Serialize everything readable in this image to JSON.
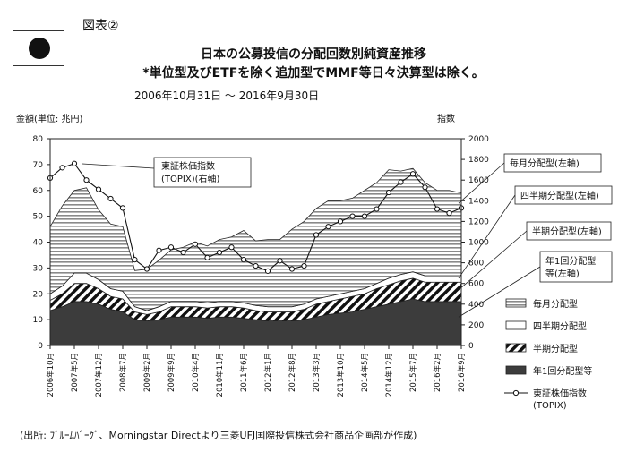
{
  "figure_label": "図表②",
  "title_line1": "日本の公募投信の分配回数別純資産推移",
  "title_line2": "*単位型及びETFを除く追加型でMMF等日々決算型は除く。",
  "period": "2006年10月31日 ～ 2016年9月30日",
  "source": "(出所: ﾌﾞﾙｰﾑﾊﾞｰｸﾞ、Morningstar Directより三菱UFJ国際投信株式会社商品企画部が作成)",
  "chart_data": {
    "type": "area",
    "ylabel_left": "金額(単位: 兆円)",
    "ylabel_right": "指数",
    "ylim_left": [
      0,
      80
    ],
    "ylim_right": [
      0,
      2000
    ],
    "yticks_left": [
      0,
      10,
      20,
      30,
      40,
      50,
      60,
      70,
      80
    ],
    "yticks_right": [
      0,
      200,
      400,
      600,
      800,
      1000,
      1200,
      1400,
      1600,
      1800,
      2000
    ],
    "x_tick_labels": [
      "2006年10月",
      "2007年5月",
      "2007年12月",
      "2008年7月",
      "2009年2月",
      "2009年9月",
      "2010年4月",
      "2010年11月",
      "2011年6月",
      "2012年1月",
      "2012年8月",
      "2013年3月",
      "2013年10月",
      "2014年5月",
      "2014年12月",
      "2015年7月",
      "2016年2月",
      "2016年9月"
    ],
    "x": [
      "2006-10",
      "2007-01",
      "2007-05",
      "2007-08",
      "2007-12",
      "2008-03",
      "2008-07",
      "2008-10",
      "2009-02",
      "2009-05",
      "2009-09",
      "2009-12",
      "2010-04",
      "2010-07",
      "2010-11",
      "2011-02",
      "2011-06",
      "2011-09",
      "2012-01",
      "2012-04",
      "2012-08",
      "2012-11",
      "2013-03",
      "2013-06",
      "2013-10",
      "2014-01",
      "2014-05",
      "2014-08",
      "2014-12",
      "2015-03",
      "2015-07",
      "2015-10",
      "2016-02",
      "2016-05",
      "2016-09"
    ],
    "series": [
      {
        "name": "年1回分配型等",
        "axis": "left",
        "values": [
          13.5,
          15,
          17,
          17,
          16,
          14,
          13,
          10,
          9.5,
          10,
          11,
          11,
          11,
          10.5,
          11,
          11,
          10.5,
          10,
          9.5,
          9.5,
          9.5,
          10,
          11,
          12,
          12.5,
          13,
          14,
          15,
          16,
          17,
          18,
          17,
          17,
          17,
          17
        ]
      },
      {
        "name": "半期分配型",
        "axis": "left",
        "values": [
          4,
          5,
          7,
          7,
          6,
          5,
          5,
          3,
          2.5,
          3,
          4,
          4,
          4,
          4,
          4,
          4,
          4,
          3.5,
          3.5,
          3.5,
          3.5,
          4,
          5,
          5,
          5.5,
          6,
          6,
          7,
          7.5,
          8,
          8,
          7.5,
          7.5,
          7.5,
          7.5
        ]
      },
      {
        "name": "四半期分配型",
        "axis": "left",
        "values": [
          2.5,
          3,
          4,
          4,
          3.5,
          3,
          3,
          2,
          1.5,
          2,
          2,
          2,
          2,
          2,
          2,
          2,
          2,
          2,
          2,
          2,
          2,
          2,
          2,
          2,
          2,
          2,
          2,
          2,
          2.5,
          2.5,
          2.5,
          2.5,
          2.5,
          2.5,
          2.5
        ]
      },
      {
        "name": "毎月分配型",
        "axis": "left",
        "values": [
          26,
          31,
          32,
          33,
          27,
          25,
          25,
          14,
          16,
          18,
          20,
          21,
          23,
          22,
          24,
          25,
          28,
          25,
          26,
          26,
          30,
          32,
          35,
          37,
          36,
          36,
          38,
          39,
          42,
          40,
          40,
          36,
          33,
          33,
          32
        ]
      },
      {
        "name": "東証株価指数(TOPIX)",
        "axis": "right",
        "values": [
          1620,
          1720,
          1760,
          1600,
          1510,
          1420,
          1330,
          830,
          740,
          920,
          950,
          900,
          980,
          850,
          900,
          950,
          830,
          770,
          720,
          820,
          740,
          770,
          1070,
          1150,
          1200,
          1250,
          1250,
          1320,
          1480,
          1580,
          1660,
          1530,
          1320,
          1280,
          1330
        ]
      }
    ],
    "callouts": {
      "topix": [
        "東証株価指数",
        "(TOPIX)(右軸)"
      ],
      "monthly": "毎月分配型(左軸)",
      "quarterly": "四半期分配型(左軸)",
      "semi": "半期分配型(左軸)",
      "annual": [
        "年1回分配型",
        "等(左軸)"
      ]
    },
    "legend": {
      "placement": "bottom-right",
      "items": [
        "毎月分配型",
        "四半期分配型",
        "半期分配型",
        "年1回分配型等",
        "東証株価指数"
      ],
      "topix_sub": "(TOPIX)"
    }
  }
}
